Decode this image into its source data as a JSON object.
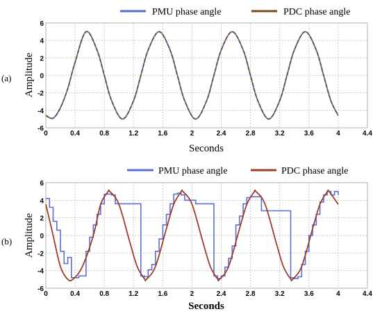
{
  "chart_data": [
    {
      "type": "line",
      "panel_label": "(a)",
      "xlabel": "Seconds",
      "ylabel": "Amplitude",
      "xlim": [
        0,
        4.4
      ],
      "ylim": [
        -6,
        6
      ],
      "x_ticks": [
        "0",
        "0.4",
        "0.8",
        "1.2",
        "1.6",
        "2",
        "2.4",
        "2.8",
        "3.2",
        "3.6",
        "4",
        "4.4"
      ],
      "y_ticks": [
        "6",
        "4",
        "2",
        "0",
        "-2",
        "-4",
        "-6"
      ],
      "grid": true,
      "legend_position": "top-right",
      "series": [
        {
          "name": "PMU phase angle",
          "color": "#4a6fc9",
          "style": "smooth",
          "x": [
            0,
            0.1,
            0.2,
            0.3,
            0.4,
            0.55,
            0.7,
            0.8,
            0.9,
            1.05,
            1.2,
            1.3,
            1.4,
            1.55,
            1.7,
            1.8,
            1.9,
            2.05,
            2.2,
            2.3,
            2.4,
            2.55,
            2.7,
            2.8,
            2.9,
            3.05,
            3.2,
            3.3,
            3.4,
            3.55,
            3.7,
            3.8,
            3.9,
            4.0
          ],
          "y": [
            -4.6,
            -4.9,
            -3.7,
            -1.5,
            1.5,
            5.0,
            2.9,
            0.0,
            -2.9,
            -5.0,
            -2.9,
            0.0,
            2.9,
            5.0,
            2.9,
            0.0,
            -2.9,
            -5.0,
            -2.9,
            0.0,
            2.9,
            5.0,
            2.9,
            0.0,
            -2.9,
            -5.0,
            -2.9,
            0.0,
            2.9,
            5.0,
            2.9,
            0.0,
            -2.9,
            -4.6
          ]
        },
        {
          "name": "PDC phase angle",
          "color": "#7a4a1c",
          "style": "smooth",
          "x": [
            0,
            0.1,
            0.2,
            0.3,
            0.4,
            0.55,
            0.7,
            0.8,
            0.9,
            1.05,
            1.2,
            1.3,
            1.4,
            1.55,
            1.7,
            1.8,
            1.9,
            2.05,
            2.2,
            2.3,
            2.4,
            2.55,
            2.7,
            2.8,
            2.9,
            3.05,
            3.2,
            3.3,
            3.4,
            3.55,
            3.7,
            3.8,
            3.9,
            4.0
          ],
          "y": [
            -4.6,
            -4.9,
            -3.7,
            -1.5,
            1.5,
            5.0,
            2.9,
            0.0,
            -2.9,
            -5.0,
            -2.9,
            0.0,
            2.9,
            5.0,
            2.9,
            0.0,
            -2.9,
            -5.0,
            -2.9,
            0.0,
            2.9,
            5.0,
            2.9,
            0.0,
            -2.9,
            -5.0,
            -2.9,
            0.0,
            2.9,
            5.0,
            2.9,
            0.0,
            -2.9,
            -4.6
          ]
        }
      ]
    },
    {
      "type": "line",
      "panel_label": "(b)",
      "xlabel": "Seconds",
      "ylabel": "Amplitude",
      "xlim": [
        0,
        4.4
      ],
      "ylim": [
        -6,
        6
      ],
      "x_ticks": [
        "0",
        "0.4",
        "0.8",
        "1.2",
        "1.6",
        "2",
        "2.4",
        "2.8",
        "3.2",
        "3.6",
        "4",
        "4.4"
      ],
      "y_ticks": [
        "6",
        "4",
        "2",
        "0",
        "-2",
        "-4",
        "-6"
      ],
      "grid": true,
      "legend_position": "top-right",
      "series": [
        {
          "name": "PMU phase angle",
          "color": "#5b6ed6",
          "style": "step",
          "x": [
            0,
            0.05,
            0.1,
            0.15,
            0.2,
            0.25,
            0.3,
            0.35,
            0.45,
            0.55,
            0.6,
            0.65,
            0.7,
            0.75,
            0.8,
            0.85,
            0.9,
            0.95,
            1.05,
            1.3,
            1.35,
            1.4,
            1.45,
            1.5,
            1.55,
            1.6,
            1.65,
            1.7,
            1.75,
            1.8,
            1.85,
            1.9,
            1.95,
            2.05,
            2.3,
            2.35,
            2.4,
            2.45,
            2.5,
            2.55,
            2.6,
            2.65,
            2.7,
            2.75,
            2.8,
            2.85,
            2.9,
            2.95,
            3.1,
            3.35,
            3.4,
            3.45,
            3.5,
            3.55,
            3.6,
            3.65,
            3.7,
            3.75,
            3.8,
            3.85,
            3.9,
            3.95,
            4.0
          ],
          "y": [
            4.2,
            3.2,
            1.6,
            0.6,
            -1.8,
            -3.2,
            -2.5,
            -4.8,
            -4.6,
            -1.8,
            -0.2,
            1.2,
            2.4,
            3.6,
            4.7,
            4.7,
            4.6,
            3.6,
            3.6,
            -4.6,
            -4.7,
            -3.9,
            -3.3,
            -1.8,
            -0.4,
            1.2,
            2.4,
            3.6,
            4.7,
            4.8,
            4.6,
            4.0,
            4.0,
            3.6,
            -4.6,
            -4.9,
            -4.6,
            -3.6,
            -2.6,
            -1.2,
            1.2,
            2.2,
            3.6,
            4.3,
            4.4,
            4.4,
            4.4,
            2.8,
            2.8,
            -4.8,
            -4.9,
            -4.7,
            -3.3,
            -1.8,
            0.0,
            1.2,
            2.4,
            3.8,
            4.6,
            5.0,
            4.6,
            5.0,
            4.6
          ]
        },
        {
          "name": "PDC phase angle",
          "color": "#9c3d2a",
          "style": "smooth",
          "x": [
            0,
            0.1,
            0.2,
            0.3,
            0.375,
            0.5,
            0.65,
            0.75,
            0.85,
            0.875,
            1.0,
            1.15,
            1.25,
            1.35,
            1.375,
            1.5,
            1.65,
            1.75,
            1.85,
            1.875,
            2.0,
            2.15,
            2.25,
            2.35,
            2.375,
            2.5,
            2.65,
            2.75,
            2.85,
            2.875,
            3.0,
            3.15,
            3.25,
            3.35,
            3.375,
            3.5,
            3.65,
            3.75,
            3.85,
            3.875,
            4.0
          ],
          "y": [
            3.54,
            0.0,
            -3.54,
            -5.0,
            -4.95,
            -3.54,
            0.0,
            3.54,
            4.95,
            5.0,
            3.54,
            -0.78,
            -3.54,
            -4.95,
            -5.0,
            -3.54,
            0.78,
            3.54,
            4.95,
            5.0,
            3.54,
            -0.78,
            -3.54,
            -4.95,
            -5.0,
            -3.54,
            0.78,
            3.54,
            4.95,
            5.0,
            3.54,
            -0.78,
            -3.54,
            -4.95,
            -5.0,
            -3.54,
            0.78,
            3.54,
            4.95,
            5.0,
            3.54
          ]
        }
      ]
    }
  ]
}
